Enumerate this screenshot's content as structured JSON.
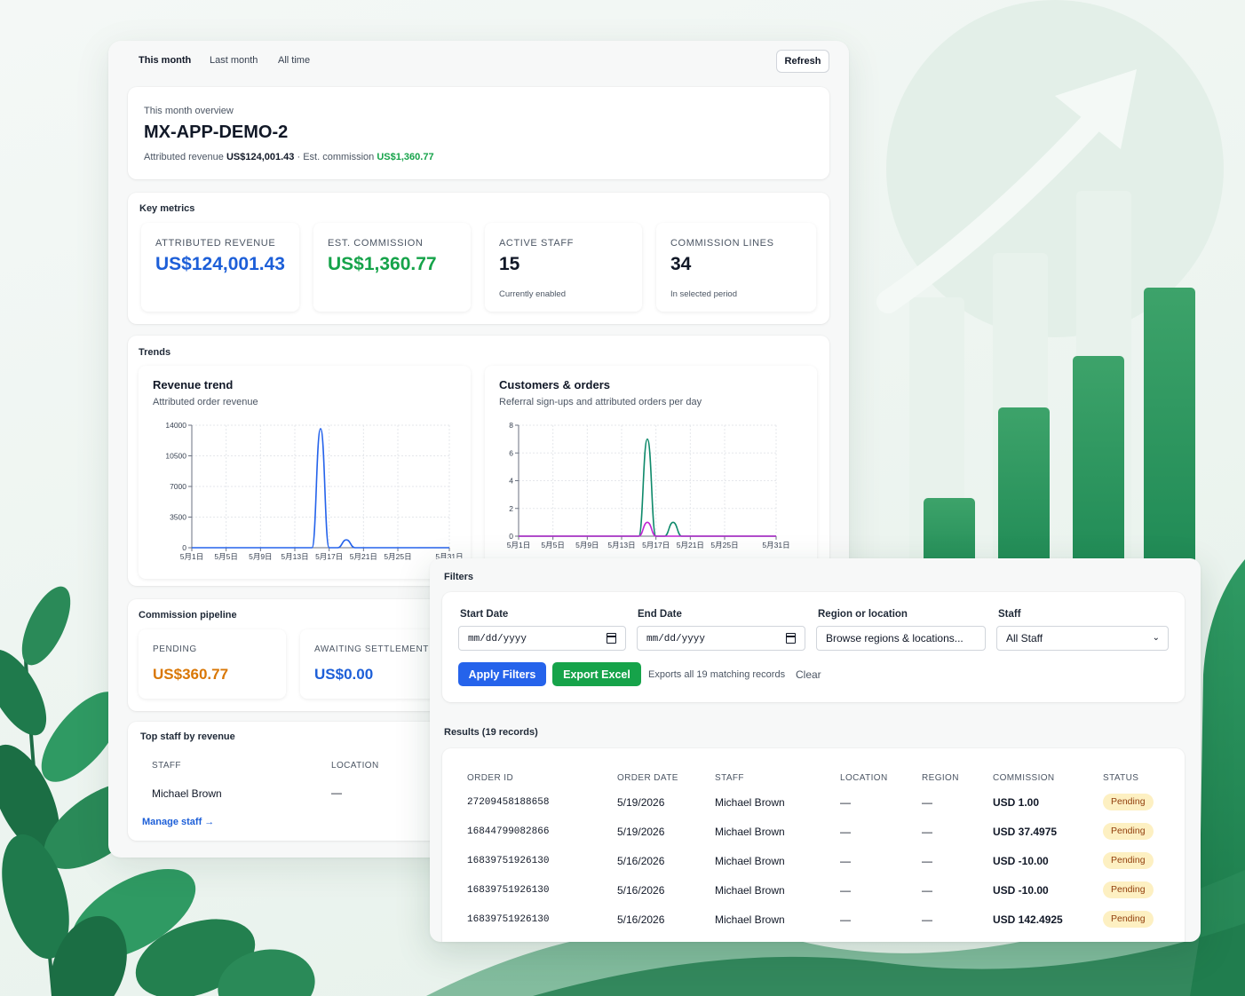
{
  "tabs": [
    "This month",
    "Last month",
    "All time"
  ],
  "refresh_label": "Refresh",
  "overview": {
    "subtitle": "This month overview",
    "title": "MX-APP-DEMO-2",
    "revenue_label": "Attributed revenue",
    "revenue_value": "US$124,001.43",
    "separator": "·",
    "commission_label": "Est. commission",
    "commission_value": "US$1,360.77"
  },
  "key_metrics": {
    "label": "Key metrics",
    "cards": [
      {
        "label": "ATTRIBUTED REVENUE",
        "value": "US$124,001.43",
        "note": "",
        "color": "#1d5fd8"
      },
      {
        "label": "EST. COMMISSION",
        "value": "US$1,360.77",
        "note": "",
        "color": "#16a34a"
      },
      {
        "label": "ACTIVE STAFF",
        "value": "15",
        "note": "Currently enabled",
        "color": "#111827"
      },
      {
        "label": "COMMISSION LINES",
        "value": "34",
        "note": "In selected period",
        "color": "#111827"
      }
    ]
  },
  "trends": {
    "label": "Trends",
    "revenue": {
      "title": "Revenue trend",
      "subtitle": "Attributed order revenue"
    },
    "customers": {
      "title": "Customers & orders",
      "subtitle": "Referral sign-ups and attributed orders per day"
    }
  },
  "chart_data": [
    {
      "type": "line",
      "title": "Revenue trend",
      "subtitle": "Attributed order revenue",
      "x": [
        "5月1日",
        "5月2日",
        "5月3日",
        "5月4日",
        "5月5日",
        "5月6日",
        "5月7日",
        "5月8日",
        "5月9日",
        "5月10日",
        "5月11日",
        "5月12日",
        "5月13日",
        "5月14日",
        "5月15日",
        "5月16日",
        "5月17日",
        "5月18日",
        "5月19日",
        "5月20日",
        "5月21日",
        "5月22日",
        "5月23日",
        "5月24日",
        "5月25日",
        "5月26日",
        "5月27日",
        "5月28日",
        "5月29日",
        "5月30日",
        "5月31日"
      ],
      "x_ticks": [
        "5月1日",
        "5月5日",
        "5月9日",
        "5月13日",
        "5月17日",
        "5月21日",
        "5月25日",
        "5月31日"
      ],
      "series": [
        {
          "color": "#2563eb",
          "values": [
            0,
            0,
            0,
            0,
            0,
            0,
            0,
            0,
            0,
            0,
            0,
            0,
            0,
            0,
            0,
            13600,
            0,
            0,
            900,
            0,
            0,
            0,
            0,
            0,
            0,
            0,
            0,
            0,
            0,
            0,
            0
          ]
        }
      ],
      "y_ticks": [
        0,
        3500,
        7000,
        10500,
        14000
      ],
      "ylim": [
        0,
        14000
      ],
      "grid": true
    },
    {
      "type": "line",
      "title": "Customers & orders",
      "subtitle": "Referral sign-ups and attributed orders per day",
      "x": [
        "5月1日",
        "5月2日",
        "5月3日",
        "5月4日",
        "5月5日",
        "5月6日",
        "5月7日",
        "5月8日",
        "5月9日",
        "5月10日",
        "5月11日",
        "5月12日",
        "5月13日",
        "5月14日",
        "5月15日",
        "5月16日",
        "5月17日",
        "5月18日",
        "5月19日",
        "5月20日",
        "5月21日",
        "5月22日",
        "5月23日",
        "5月24日",
        "5月25日",
        "5月26日",
        "5月27日",
        "5月28日",
        "5月29日",
        "5月30日",
        "5月31日"
      ],
      "x_ticks": [
        "5月1日",
        "5月5日",
        "5月9日",
        "5月13日",
        "5月17日",
        "5月21日",
        "5月25日",
        "5月31日"
      ],
      "series": [
        {
          "color": "#0f8a6b",
          "values": [
            0,
            0,
            0,
            0,
            0,
            0,
            0,
            0,
            0,
            0,
            0,
            0,
            0,
            0,
            0,
            7,
            0,
            0,
            1,
            0,
            0,
            0,
            0,
            0,
            0,
            0,
            0,
            0,
            0,
            0,
            0
          ]
        },
        {
          "color": "#c026d3",
          "values": [
            0,
            0,
            0,
            0,
            0,
            0,
            0,
            0,
            0,
            0,
            0,
            0,
            0,
            0,
            0,
            1,
            0,
            0,
            0,
            0,
            0,
            0,
            0,
            0,
            0,
            0,
            0,
            0,
            0,
            0,
            0
          ]
        }
      ],
      "y_ticks": [
        0,
        2,
        4,
        6,
        8
      ],
      "ylim": [
        0,
        8
      ],
      "grid": true
    }
  ],
  "pipeline": {
    "label": "Commission pipeline",
    "cards": [
      {
        "label": "PENDING",
        "value": "US$360.77",
        "color": "#d97706"
      },
      {
        "label": "AWAITING SETTLEMENT",
        "value": "US$0.00",
        "color": "#1d5fd8"
      }
    ]
  },
  "top_staff": {
    "label": "Top staff by revenue",
    "headers": [
      "STAFF",
      "LOCATION"
    ],
    "rows": [
      {
        "staff": "Michael Brown",
        "location": "—"
      }
    ],
    "manage_link": "Manage staff →"
  },
  "filters": {
    "label": "Filters",
    "start_label": "Start Date",
    "start_value": "mm/dd/yyyy",
    "end_label": "End Date",
    "end_value": "mm/dd/yyyy",
    "region_label": "Region or location",
    "region_value": "Browse regions & locations...",
    "staff_label": "Staff",
    "staff_value": "All Staff",
    "apply_label": "Apply Filters",
    "export_label": "Export Excel",
    "export_hint": "Exports all 19 matching records",
    "clear_label": "Clear"
  },
  "results": {
    "label": "Results (19 records)",
    "headers": [
      "ORDER ID",
      "ORDER DATE",
      "STAFF",
      "LOCATION",
      "REGION",
      "COMMISSION",
      "STATUS"
    ],
    "rows": [
      {
        "order_id": "27209458188658",
        "date": "5/19/2026",
        "staff": "Michael Brown",
        "location": "—",
        "region": "—",
        "commission": "USD 1.00",
        "status": "Pending"
      },
      {
        "order_id": "16844799082866",
        "date": "5/19/2026",
        "staff": "Michael Brown",
        "location": "—",
        "region": "—",
        "commission": "USD 37.4975",
        "status": "Pending"
      },
      {
        "order_id": "16839751926130",
        "date": "5/16/2026",
        "staff": "Michael Brown",
        "location": "—",
        "region": "—",
        "commission": "USD -10.00",
        "status": "Pending"
      },
      {
        "order_id": "16839751926130",
        "date": "5/16/2026",
        "staff": "Michael Brown",
        "location": "—",
        "region": "—",
        "commission": "USD -10.00",
        "status": "Pending"
      },
      {
        "order_id": "16839751926130",
        "date": "5/16/2026",
        "staff": "Michael Brown",
        "location": "—",
        "region": "—",
        "commission": "USD 142.4925",
        "status": "Pending"
      }
    ]
  }
}
